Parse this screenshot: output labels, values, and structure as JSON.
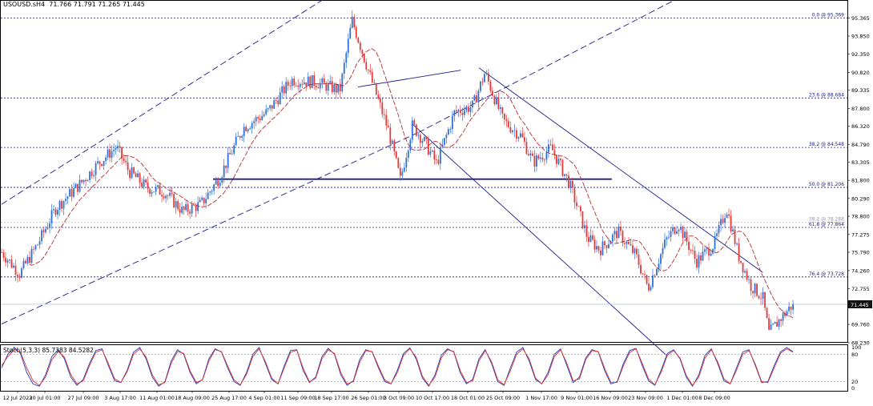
{
  "header": {
    "symbol": "USOUSD.sH4",
    "ohlc": "71.766 71.791 71.265 71.445"
  },
  "stoch_header": "Stoch(5,3,3) 85.7383 84.5282",
  "colors": {
    "bull": "#2e6fd8",
    "bear": "#e23a3a",
    "ma": "#b03030",
    "channel": "#1c1c8c",
    "fib": "#1c1c8c",
    "level": "#1c1c8c",
    "stoch_main": "#1f3fc0",
    "stoch_signal": "#e03030"
  },
  "chart_data": [
    {
      "type": "candlestick",
      "title": "USOUSD.sH4",
      "ylim": [
        68.23,
        96.8
      ],
      "price_ticks": [
        "95.365",
        "93.850",
        "92.350",
        "90.820",
        "89.335",
        "87.800",
        "86.320",
        "84.790",
        "83.305",
        "81.800",
        "80.290",
        "78.800",
        "77.275",
        "75.790",
        "74.260",
        "72.755",
        "71.445",
        "69.760",
        "68.230"
      ],
      "x_tick_labels": [
        "12 Jul 2023",
        "20 Jul 01:00",
        "27 Jul 09:00",
        "3 Aug 17:00",
        "11 Aug 01:00",
        "18 Aug 09:00",
        "25 Aug 17:00",
        "4 Sep 01:00",
        "11 Sep 09:00",
        "18 Sep 17:00",
        "26 Sep 01:00",
        "3 Oct 09:00",
        "10 Oct 17:00",
        "18 Oct 01:00",
        "25 Oct 09:00",
        "1 Nov 17:00",
        "9 Nov 01:00",
        "16 Nov 09:00",
        "23 Nov 09:00",
        "1 Dec 01:00",
        "8 Dec 09:00"
      ],
      "current_price": "71.445",
      "fib_levels": [
        {
          "label": "0.0 @ 95.369",
          "value": 95.369
        },
        {
          "label": "23.6 @ 88.684",
          "value": 88.684
        },
        {
          "label": "38.2 @ 84.548",
          "value": 84.548
        },
        {
          "label": "50.0 @ 81.206",
          "value": 81.206
        },
        {
          "label": "38.2 @ 78.288",
          "value": 78.288
        },
        {
          "label": "61.8 @ 77.864",
          "value": 77.864
        },
        {
          "label": "76.4 @ 73.728",
          "value": 73.728
        }
      ],
      "horizontal_level": 81.9,
      "price_path": [
        {
          "d": 0,
          "p": 75.8
        },
        {
          "d": 3,
          "p": 74.0
        },
        {
          "d": 6,
          "p": 76.5
        },
        {
          "d": 9,
          "p": 79.5
        },
        {
          "d": 13,
          "p": 81.5
        },
        {
          "d": 16,
          "p": 83.2
        },
        {
          "d": 19,
          "p": 84.6
        },
        {
          "d": 21,
          "p": 82.6
        },
        {
          "d": 24,
          "p": 81.2
        },
        {
          "d": 27,
          "p": 80.8
        },
        {
          "d": 30,
          "p": 79.2
        },
        {
          "d": 33,
          "p": 79.8
        },
        {
          "d": 36,
          "p": 82.0
        },
        {
          "d": 40,
          "p": 86.2
        },
        {
          "d": 44,
          "p": 87.5
        },
        {
          "d": 48,
          "p": 90.2
        },
        {
          "d": 52,
          "p": 90.0
        },
        {
          "d": 56,
          "p": 89.3
        },
        {
          "d": 58,
          "p": 95.2
        },
        {
          "d": 61,
          "p": 90.5
        },
        {
          "d": 64,
          "p": 86.0
        },
        {
          "d": 66,
          "p": 81.8
        },
        {
          "d": 68,
          "p": 86.4
        },
        {
          "d": 70,
          "p": 85.0
        },
        {
          "d": 72,
          "p": 83.2
        },
        {
          "d": 75,
          "p": 87.5
        },
        {
          "d": 78,
          "p": 88.0
        },
        {
          "d": 80,
          "p": 90.8
        },
        {
          "d": 83,
          "p": 86.8
        },
        {
          "d": 86,
          "p": 85.5
        },
        {
          "d": 88,
          "p": 83.3
        },
        {
          "d": 91,
          "p": 84.5
        },
        {
          "d": 94,
          "p": 81.5
        },
        {
          "d": 97,
          "p": 77.0
        },
        {
          "d": 99,
          "p": 76.0
        },
        {
          "d": 102,
          "p": 77.5
        },
        {
          "d": 105,
          "p": 75.5
        },
        {
          "d": 107,
          "p": 72.8
        },
        {
          "d": 110,
          "p": 76.8
        },
        {
          "d": 112,
          "p": 78.2
        },
        {
          "d": 115,
          "p": 75.0
        },
        {
          "d": 118,
          "p": 76.5
        },
        {
          "d": 120,
          "p": 79.5
        },
        {
          "d": 122,
          "p": 75.5
        },
        {
          "d": 124,
          "p": 73.0
        },
        {
          "d": 126,
          "p": 72.0
        },
        {
          "d": 127,
          "p": 69.0
        },
        {
          "d": 129,
          "p": 70.3
        },
        {
          "d": 131,
          "p": 71.445
        }
      ]
    },
    {
      "type": "line",
      "title": "Stoch(5,3,3) 85.7383 84.5282",
      "ylim": [
        0,
        100
      ],
      "y_ticks": [
        "100",
        "80",
        "20",
        "0"
      ],
      "series": [
        {
          "values": [
            50,
            80,
            95,
            82,
            40,
            15,
            10,
            35,
            75,
            90,
            70,
            30,
            12,
            25,
            60,
            88,
            92,
            55,
            22,
            18,
            45,
            85,
            95,
            70,
            30,
            10,
            20,
            65,
            90,
            80,
            40,
            15,
            25,
            70,
            92,
            85,
            50,
            20,
            12,
            40,
            80,
            95,
            60,
            25,
            15,
            55,
            88,
            90,
            45,
            18,
            30,
            75,
            93,
            80,
            35,
            12,
            22,
            68,
            90,
            85,
            50,
            20,
            15,
            45,
            82,
            94,
            70,
            28,
            10,
            35,
            78,
            92,
            85,
            40,
            15,
            25,
            70,
            90,
            60,
            20,
            12,
            50,
            85,
            95,
            65,
            25,
            15,
            40,
            80,
            92,
            55,
            18,
            30,
            72,
            90,
            85,
            45,
            15,
            20,
            60,
            88,
            93,
            55,
            22,
            12,
            45,
            82,
            90,
            70,
            30,
            10,
            35,
            78,
            92,
            60,
            22,
            15,
            50,
            85,
            90,
            55,
            18,
            20,
            55,
            85,
            95,
            85.7
          ]
        },
        {
          "values": [
            55,
            75,
            90,
            85,
            50,
            22,
            12,
            30,
            68,
            86,
            74,
            36,
            15,
            22,
            55,
            84,
            90,
            60,
            26,
            18,
            42,
            80,
            92,
            74,
            35,
            13,
            18,
            60,
            86,
            82,
            44,
            18,
            24,
            65,
            90,
            86,
            54,
            24,
            13,
            36,
            75,
            92,
            64,
            28,
            15,
            50,
            84,
            89,
            50,
            20,
            27,
            70,
            90,
            82,
            40,
            15,
            20,
            62,
            88,
            86,
            54,
            24,
            15,
            40,
            78,
            92,
            74,
            32,
            12,
            30,
            72,
            90,
            86,
            45,
            18,
            22,
            65,
            88,
            64,
            24,
            13,
            44,
            80,
            92,
            70,
            28,
            15,
            35,
            75,
            90,
            60,
            22,
            26,
            68,
            88,
            86,
            50,
            18,
            18,
            55,
            84,
            92,
            60,
            26,
            13,
            40,
            78,
            88,
            72,
            34,
            12,
            30,
            72,
            90,
            64,
            26,
            15,
            45,
            80,
            88,
            58,
            20,
            18,
            50,
            82,
            92,
            84.5
          ]
        }
      ]
    }
  ]
}
